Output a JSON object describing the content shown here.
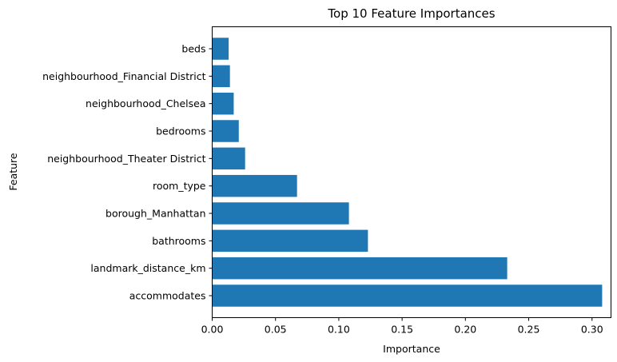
{
  "chart_data": {
    "type": "bar",
    "orientation": "horizontal",
    "title": "Top 10 Feature Importances",
    "xlabel": "Importance",
    "ylabel": "Feature",
    "categories": [
      "accommodates",
      "landmark_distance_km",
      "bathrooms",
      "borough_Manhattan",
      "room_type",
      "neighbourhood_Theater District",
      "bedrooms",
      "neighbourhood_Chelsea",
      "neighbourhood_Financial District",
      "beds"
    ],
    "values": [
      0.308,
      0.233,
      0.123,
      0.108,
      0.067,
      0.026,
      0.021,
      0.017,
      0.014,
      0.013
    ],
    "xlim": [
      0,
      0.315
    ],
    "xticks": [
      0.0,
      0.05,
      0.1,
      0.15,
      0.2,
      0.25,
      0.3
    ],
    "xtick_labels": [
      "0.00",
      "0.05",
      "0.10",
      "0.15",
      "0.20",
      "0.25",
      "0.30"
    ],
    "bar_color": "#1f77b4",
    "grid": false,
    "legend": "none"
  }
}
